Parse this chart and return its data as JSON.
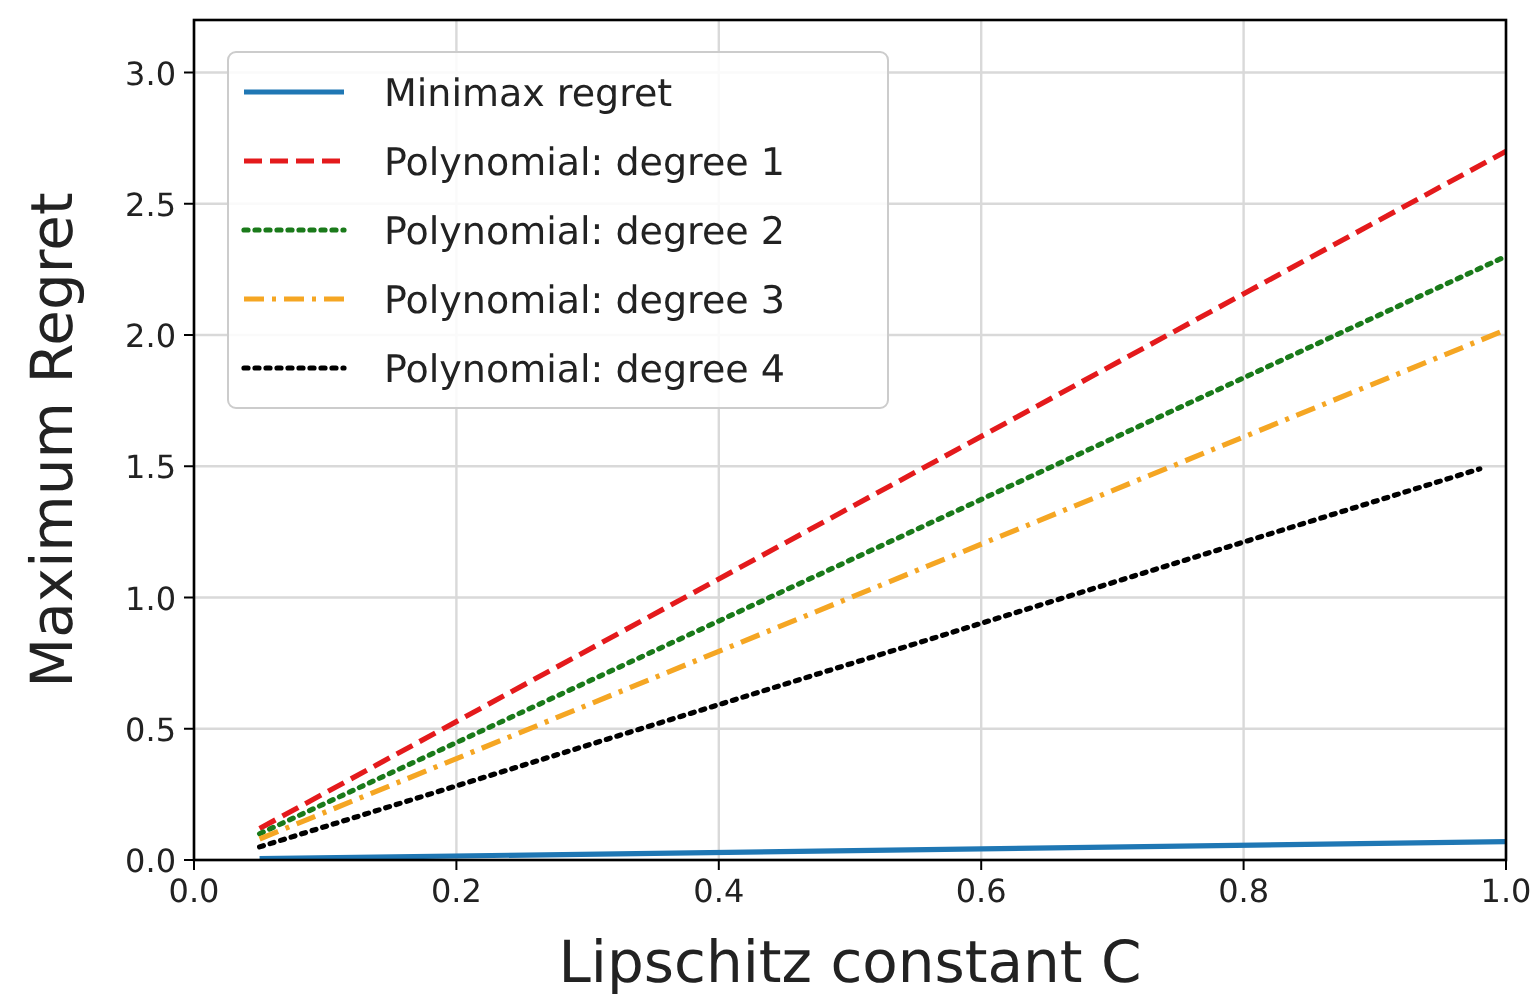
{
  "chart_data": {
    "type": "line",
    "xlabel": "Lipschitz constant C",
    "ylabel": "Maximum Regret",
    "xlim": [
      0,
      1
    ],
    "ylim": [
      0,
      3.2
    ],
    "xticks": [
      {
        "value": 0,
        "label": "0.0"
      },
      0.2,
      0.4,
      0.6,
      0.8,
      {
        "value": 1,
        "label": "1.0"
      }
    ],
    "yticks": [
      {
        "value": 0,
        "label": "0.0"
      },
      0.5,
      {
        "value": 1,
        "label": "1.0"
      },
      1.5,
      {
        "value": 2,
        "label": "2.0"
      },
      2.5,
      {
        "value": 3,
        "label": "3.0"
      }
    ],
    "grid": true,
    "legend": "top left",
    "series": [
      {
        "name": "Minimax regret",
        "color": "#1f77b4",
        "line_style": "solid",
        "x": [
          0.05,
          1
        ],
        "values": [
          0.005,
          0.07
        ]
      },
      {
        "name": "Polynomial: degree 1",
        "color": "#e41a1c",
        "line_style": "dashed",
        "x": [
          0.05,
          1
        ],
        "values": [
          0.12,
          2.7
        ]
      },
      {
        "name": "Polynomial: degree 2",
        "color": "#1a7a1a",
        "line_style": "dotted",
        "x": [
          0.05,
          1
        ],
        "values": [
          0.1,
          2.3
        ]
      },
      {
        "name": "Polynomial: degree 3",
        "color": "#f5a623",
        "line_style": "dashdot",
        "x": [
          0.05,
          1
        ],
        "values": [
          0.08,
          2.02
        ]
      },
      {
        "name": "Polynomial: degree 4",
        "color": "#000000",
        "line_style": "dotted",
        "x": [
          0.05,
          0.98
        ],
        "values": [
          0.05,
          1.49
        ]
      }
    ]
  }
}
